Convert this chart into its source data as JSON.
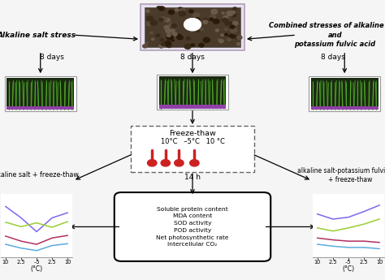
{
  "bg_color": "#f5f5f5",
  "top_left_label": "Alkaline salt stress",
  "top_right_label": "Combined stresses of alkaline salt\nand\npotassium fulvic acid",
  "left_label": "alkaline salt + freeze-thaw",
  "right_label": "alkaline salt-potassium fulvic acid\n+ freeze-thaw",
  "days_center": "8 days",
  "days_left": "8 days",
  "days_right": "8 days",
  "hours_label": "14 h",
  "freeze_line1": "Freeze-thaw",
  "freeze_line2": "10°C   –5°C   10 °C",
  "measurements": "Soluble protein content\nMDA content\nSOD activity\nPOD activity\nNet photosynthetic rate\nIntercellular CO₂",
  "x_ticks": [
    "10",
    "2.5",
    "–5",
    "2.5",
    "10"
  ],
  "x_label": "(°C)",
  "left_lines": {
    "purple": [
      0.8,
      0.62,
      0.4,
      0.62,
      0.7
    ],
    "green": [
      0.55,
      0.48,
      0.54,
      0.47,
      0.56
    ],
    "red": [
      0.33,
      0.25,
      0.2,
      0.3,
      0.34
    ],
    "blue": [
      0.2,
      0.14,
      0.1,
      0.18,
      0.21
    ]
  },
  "right_lines": {
    "purple": [
      0.68,
      0.6,
      0.63,
      0.72,
      0.82
    ],
    "green": [
      0.46,
      0.41,
      0.46,
      0.52,
      0.6
    ],
    "red": [
      0.3,
      0.27,
      0.25,
      0.25,
      0.23
    ],
    "blue": [
      0.2,
      0.17,
      0.15,
      0.15,
      0.13
    ]
  },
  "line_colors": {
    "purple": "#7b68ee",
    "green": "#9acd32",
    "red": "#b03060",
    "blue": "#5aace0"
  }
}
